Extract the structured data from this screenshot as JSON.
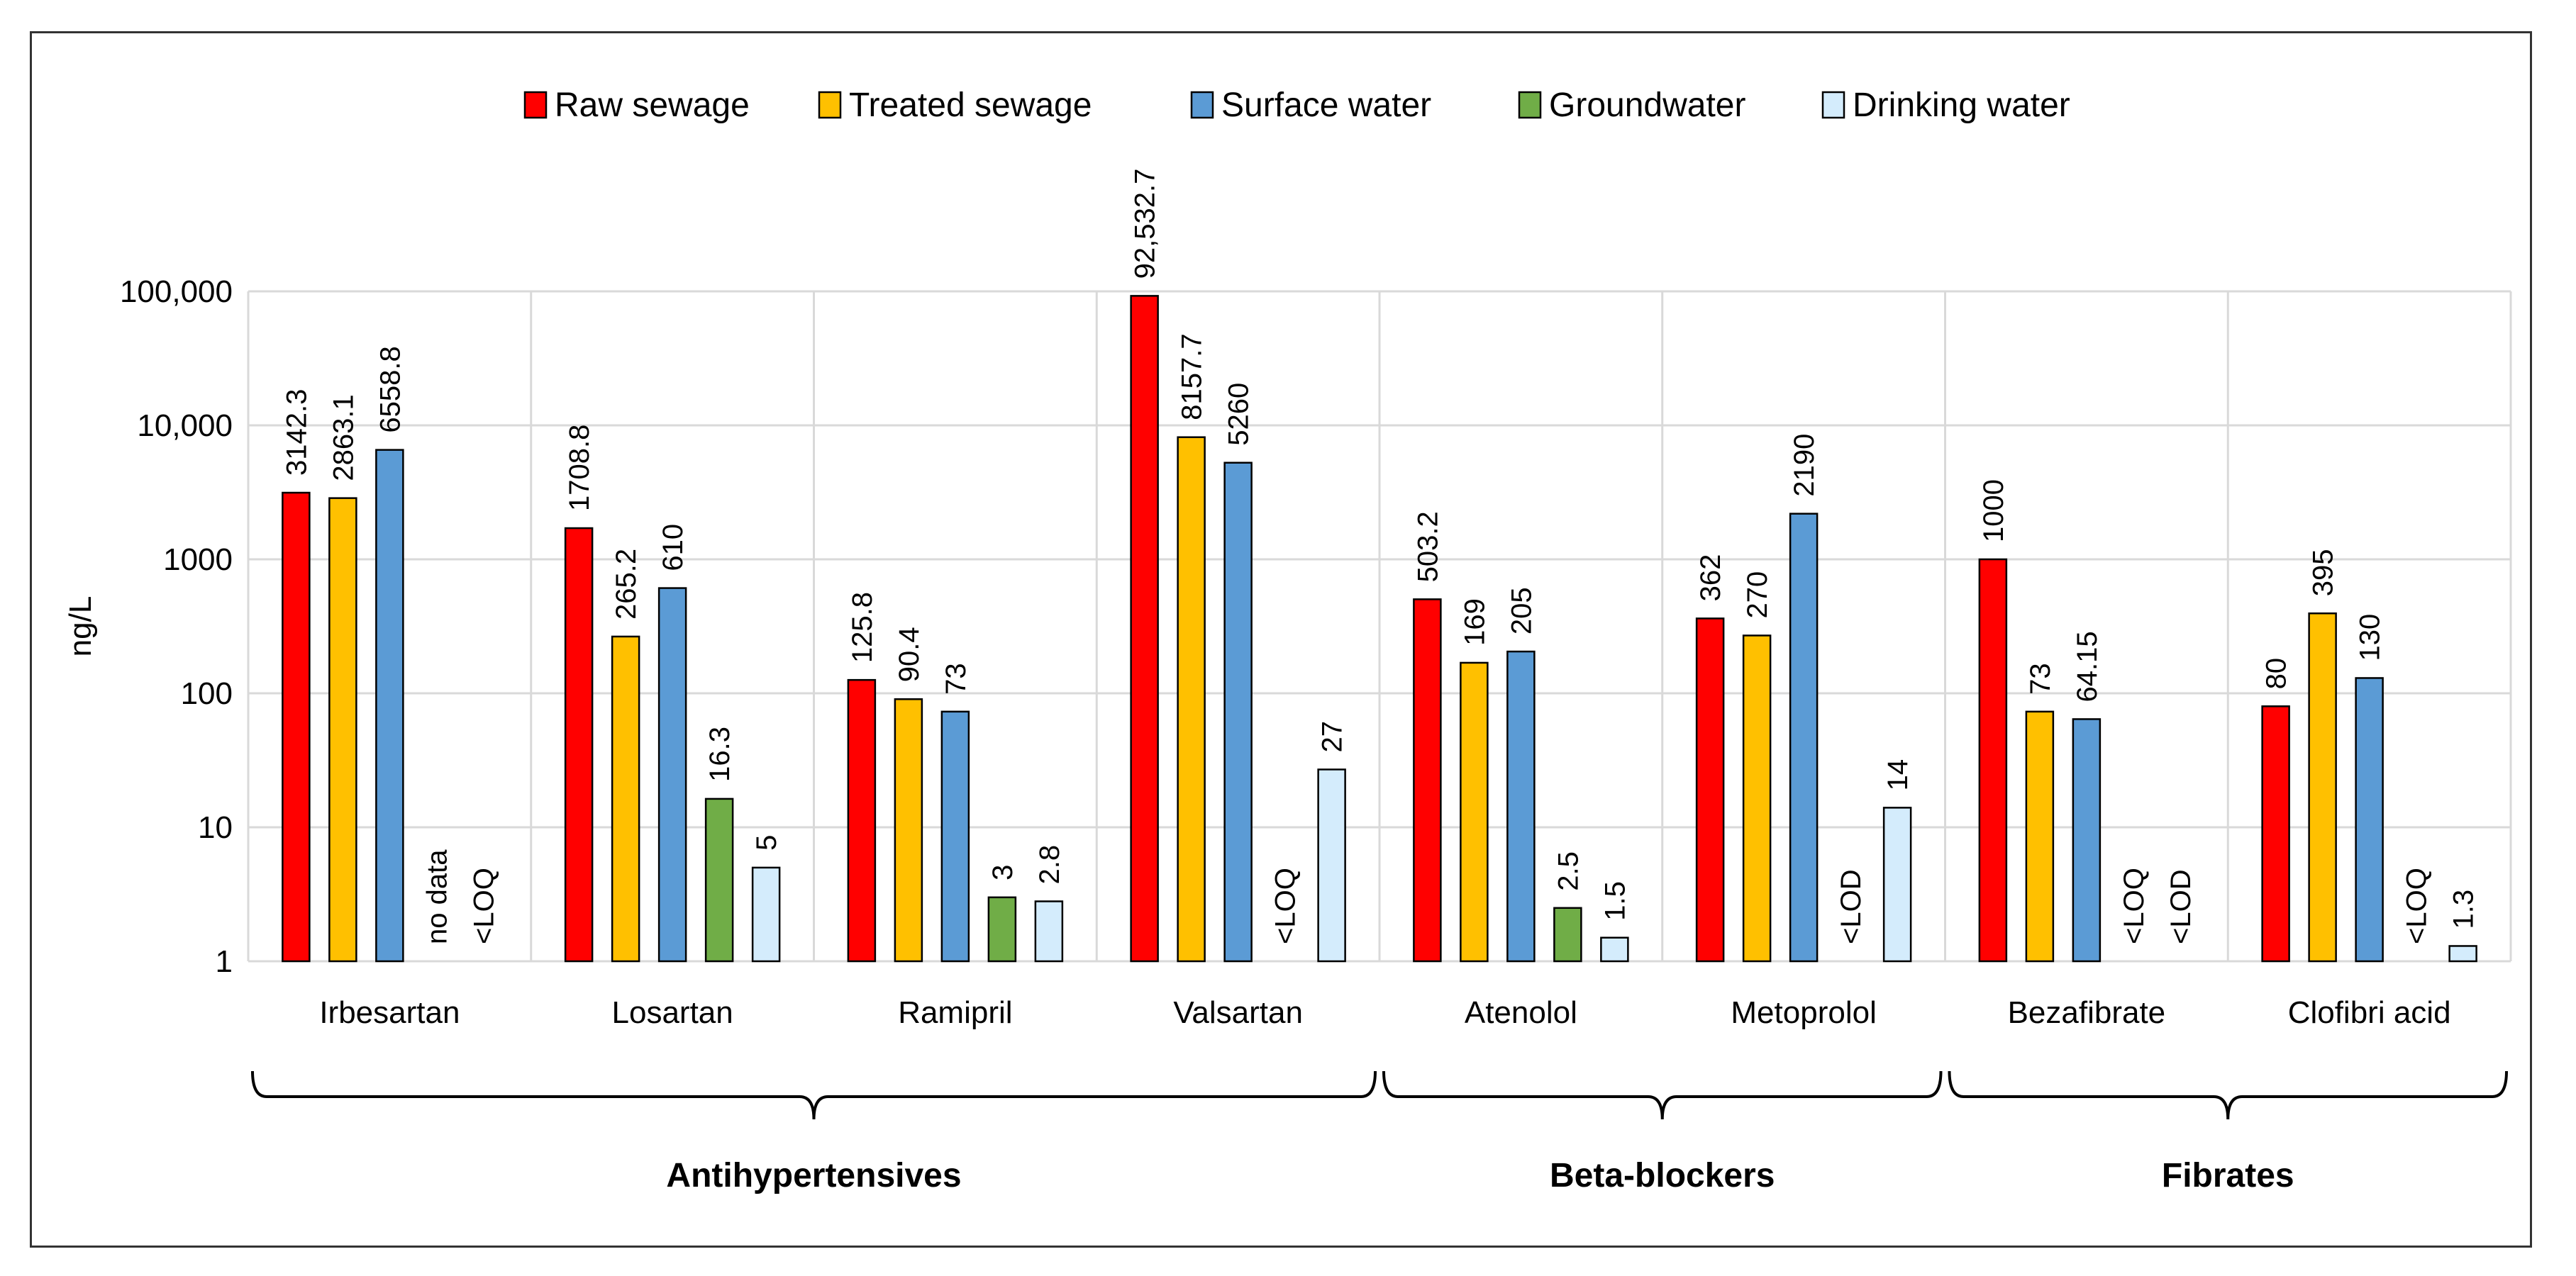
{
  "chart_data": {
    "type": "bar",
    "y_scale": "log",
    "ylabel": "ng/L",
    "ylim": [
      1,
      100000
    ],
    "y_ticks": [
      "1",
      "10",
      "100",
      "1000",
      "10,000",
      "100,000"
    ],
    "grid": true,
    "legend_position": "top",
    "categories": [
      "Irbesartan",
      "Losartan",
      "Ramipril",
      "Valsartan",
      "Atenolol",
      "Metoprolol",
      "Bezafibrate",
      "Clofibri acid"
    ],
    "series": [
      {
        "name": "Raw sewage",
        "color": "#ff0000",
        "values": [
          3142.3,
          1708.8,
          125.8,
          92532.7,
          503.2,
          362,
          1000,
          80
        ],
        "labels": [
          "3142.3",
          "1708.8",
          "125.8",
          "92,532.7",
          "503.2",
          "362",
          "1000",
          "80"
        ]
      },
      {
        "name": "Treated sewage",
        "color": "#ffc000",
        "values": [
          2863.1,
          265.2,
          90.4,
          8157.7,
          169,
          270,
          73,
          395
        ],
        "labels": [
          "2863.1",
          "265.2",
          "90.4",
          "8157.7",
          "169",
          "270",
          "73",
          "395"
        ]
      },
      {
        "name": "Surface water",
        "color": "#5b9bd5",
        "values": [
          6558.8,
          610,
          73,
          5260,
          205,
          2190,
          64.15,
          130
        ],
        "labels": [
          "6558.8",
          "610",
          "73",
          "5260",
          "205",
          "2190",
          "64.15",
          "130"
        ]
      },
      {
        "name": "Groundwater",
        "color": "#70ad47",
        "values": [
          null,
          16.3,
          3,
          null,
          2.5,
          null,
          null,
          null
        ],
        "labels": [
          "no data",
          "16.3",
          "3",
          "<LOQ",
          "2.5",
          "<LOD",
          "<LOQ",
          "<LOQ"
        ]
      },
      {
        "name": "Drinking water",
        "color": "#d4ecfc",
        "values": [
          null,
          5,
          2.8,
          27,
          1.5,
          14,
          null,
          1.3
        ],
        "labels": [
          "<LOQ",
          "5",
          "2.8",
          "27",
          "1.5",
          "14",
          "<LOD",
          "1.3"
        ]
      }
    ],
    "groups": [
      {
        "label": "Antihypertensives",
        "categories": [
          "Irbesartan",
          "Losartan",
          "Ramipril",
          "Valsartan"
        ]
      },
      {
        "label": "Beta-blockers",
        "categories": [
          "Atenolol",
          "Metoprolol"
        ]
      },
      {
        "label": "Fibrates",
        "categories": [
          "Bezafibrate",
          "Clofibri acid"
        ]
      }
    ]
  }
}
